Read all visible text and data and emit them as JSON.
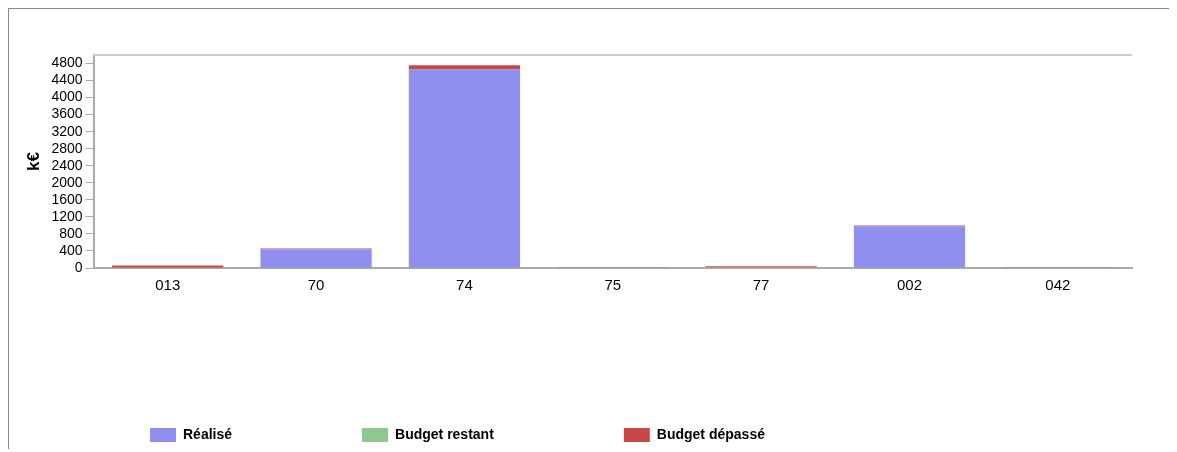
{
  "chart_data": {
    "type": "bar",
    "ylabel": "k€",
    "categories": [
      "013",
      "70",
      "74",
      "75",
      "77",
      "002",
      "042"
    ],
    "stacked": true,
    "series": [
      {
        "name": "Réalisé",
        "color": "#8f8ff0",
        "values": [
          null,
          440,
          4660,
          null,
          null,
          980,
          null
        ]
      },
      {
        "name": "Budget restant",
        "color": "#8fc78f",
        "values": [
          null,
          null,
          null,
          null,
          20,
          null,
          null
        ]
      },
      {
        "name": "Budget dépassé",
        "color": "#c84848",
        "values": [
          60,
          20,
          100,
          20,
          20,
          20,
          20
        ]
      }
    ],
    "ylim": [
      0,
      5000
    ],
    "yticks": [
      0,
      400,
      800,
      1200,
      1600,
      2000,
      2400,
      2800,
      3200,
      3600,
      4000,
      4400,
      4800
    ],
    "grid": false,
    "legend": "bottom"
  }
}
